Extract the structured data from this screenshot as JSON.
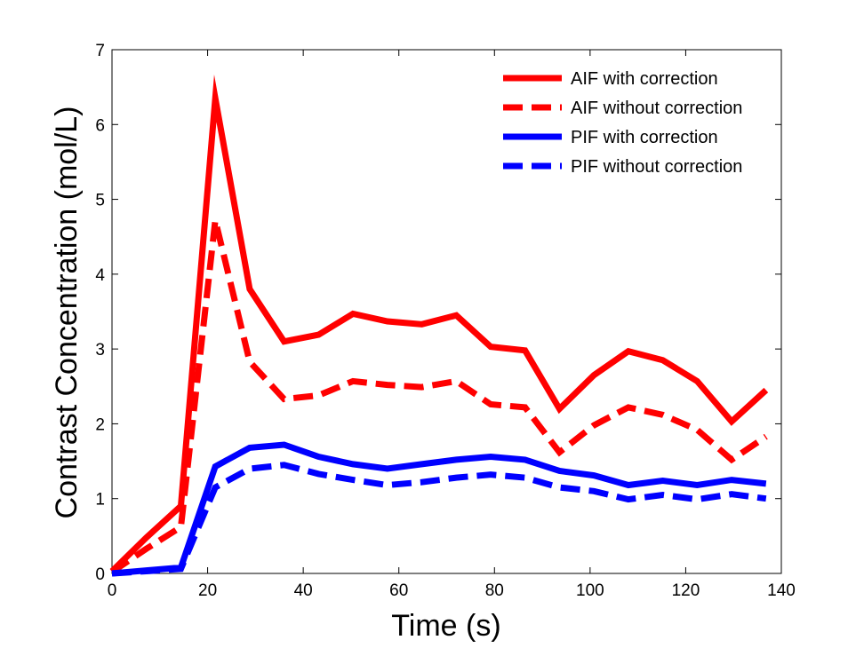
{
  "chart_data": {
    "type": "line",
    "title": "",
    "xlabel": "Time (s)",
    "ylabel": "Contrast Concentration (mol/L)",
    "xlim": [
      0,
      140
    ],
    "ylim": [
      0,
      7
    ],
    "xticks": [
      0,
      20,
      40,
      60,
      80,
      100,
      120,
      140
    ],
    "yticks": [
      0,
      1,
      2,
      3,
      4,
      5,
      6,
      7
    ],
    "grid": false,
    "legend_position": "top-right",
    "x": [
      0,
      7.2,
      14.4,
      21.6,
      28.8,
      36,
      43.2,
      50.4,
      57.6,
      64.8,
      72,
      79.2,
      86.4,
      93.6,
      100.8,
      108,
      115.2,
      122.4,
      129.6,
      136.8
    ],
    "series": [
      {
        "name": "AIF with correction",
        "color": "#ff0000",
        "dash": "solid",
        "values": [
          0.03,
          0.48,
          0.9,
          6.35,
          3.8,
          3.1,
          3.19,
          3.47,
          3.37,
          3.33,
          3.45,
          3.03,
          2.98,
          2.2,
          2.65,
          2.97,
          2.85,
          2.57,
          2.03,
          2.45
        ]
      },
      {
        "name": "AIF without correction",
        "color": "#ff0000",
        "dash": "dashed",
        "values": [
          0.02,
          0.33,
          0.62,
          4.72,
          2.83,
          2.33,
          2.38,
          2.57,
          2.52,
          2.49,
          2.57,
          2.26,
          2.22,
          1.62,
          1.98,
          2.22,
          2.12,
          1.92,
          1.52,
          1.83
        ]
      },
      {
        "name": "PIF with correction",
        "color": "#0000ff",
        "dash": "solid",
        "values": [
          0.0,
          0.04,
          0.08,
          1.43,
          1.68,
          1.72,
          1.56,
          1.46,
          1.4,
          1.46,
          1.52,
          1.56,
          1.52,
          1.37,
          1.31,
          1.18,
          1.24,
          1.18,
          1.25,
          1.2
        ]
      },
      {
        "name": "PIF without correction",
        "color": "#0000ff",
        "dash": "dashed",
        "values": [
          0.0,
          0.03,
          0.06,
          1.15,
          1.4,
          1.45,
          1.33,
          1.25,
          1.18,
          1.22,
          1.28,
          1.32,
          1.28,
          1.15,
          1.1,
          0.99,
          1.05,
          0.99,
          1.06,
          1.0
        ]
      }
    ]
  }
}
